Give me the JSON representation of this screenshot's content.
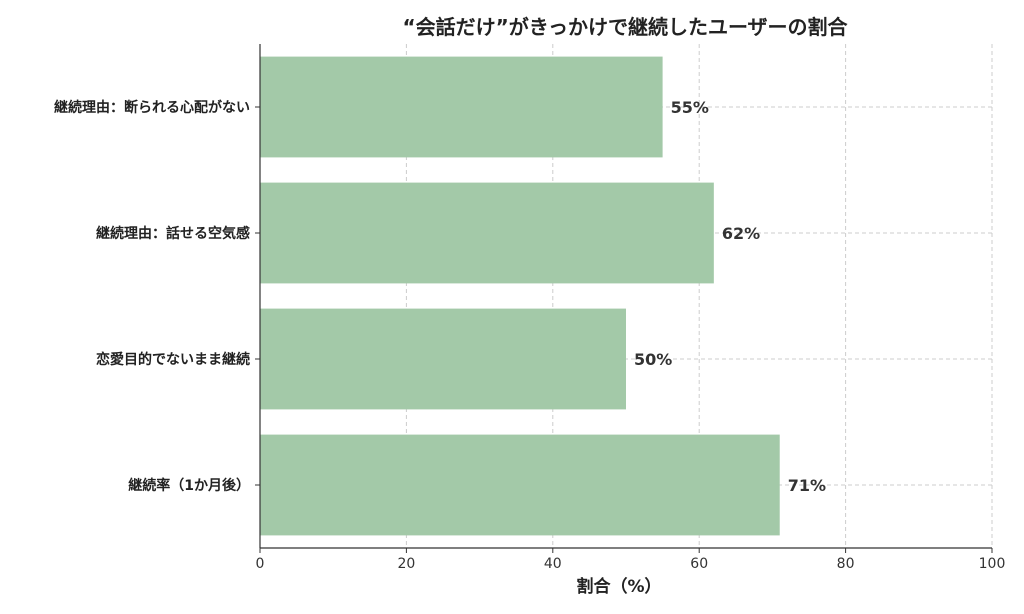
{
  "chart_data": {
    "type": "bar",
    "orientation": "horizontal",
    "title": "“会話だけ”がきっかけで継続したユーザーの割合",
    "xlabel": "割合（%）",
    "ylabel": "",
    "categories": [
      "継続理由：断られる心配がない",
      "継続理由：話せる空気感",
      "恋愛目的でないまま継続",
      "継続率（1か月後）"
    ],
    "values": [
      55,
      62,
      50,
      71
    ],
    "value_labels": [
      "55%",
      "62%",
      "50%",
      "71%"
    ],
    "xlim": [
      0,
      100
    ],
    "xticks": [
      "0",
      "20",
      "40",
      "60",
      "80",
      "100"
    ],
    "grid": true,
    "bar_color": "#a3c9a8"
  }
}
